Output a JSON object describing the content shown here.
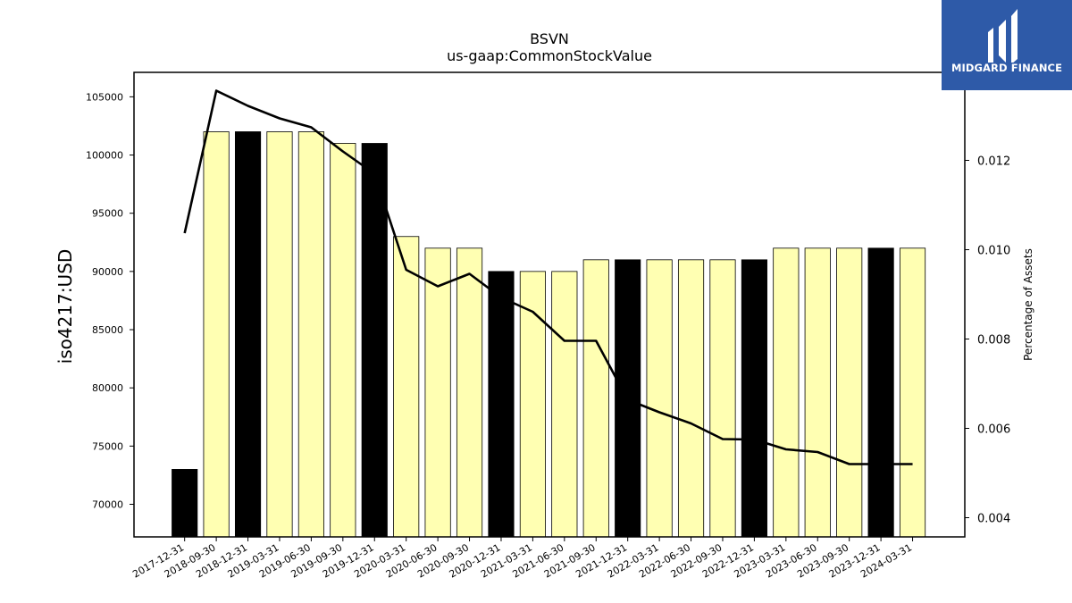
{
  "logo": {
    "text": "MIDGARD FINANCE",
    "bg_color": "#2e5aa8"
  },
  "chart_data": {
    "type": "bar",
    "title": "BSVN",
    "subtitle": "us-gaap:CommonStockValue",
    "ylabel": "iso4217:USD",
    "y2label": "Percentage of Assets",
    "ylim": [
      67200,
      107100
    ],
    "y2lim": [
      0.00357,
      0.01397
    ],
    "yticks": [
      70000,
      75000,
      80000,
      85000,
      90000,
      95000,
      100000,
      105000
    ],
    "y2ticks": [
      0.004,
      0.006,
      0.008,
      0.01,
      0.012
    ],
    "y2tick_labels": [
      "0.004",
      "0.006",
      "0.008",
      "0.010",
      "0.012"
    ],
    "categories": [
      "2017-12-31",
      "2018-09-30",
      "2018-12-31",
      "2019-03-31",
      "2019-06-30",
      "2019-09-30",
      "2019-12-31",
      "2020-03-31",
      "2020-06-30",
      "2020-09-30",
      "2020-12-31",
      "2021-03-31",
      "2021-06-30",
      "2021-09-30",
      "2021-12-31",
      "2022-03-31",
      "2022-06-30",
      "2022-09-30",
      "2022-12-31",
      "2023-03-31",
      "2023-06-30",
      "2023-09-30",
      "2023-12-31",
      "2024-03-31"
    ],
    "series": [
      {
        "type": "bar",
        "values": [
          73000,
          102000,
          102000,
          102000,
          102000,
          101000,
          101000,
          93000,
          92000,
          92000,
          90000,
          90000,
          90000,
          91000,
          91000,
          91000,
          91000,
          91000,
          91000,
          92000,
          92000,
          92000,
          92000,
          92000
        ],
        "annual_flags": [
          true,
          false,
          true,
          false,
          false,
          false,
          true,
          false,
          false,
          false,
          true,
          false,
          false,
          false,
          true,
          false,
          false,
          false,
          true,
          false,
          false,
          false,
          true,
          false
        ]
      },
      {
        "type": "line",
        "axis": "right",
        "values": [
          0.01037,
          0.01356,
          0.01322,
          0.01294,
          0.01274,
          0.0122,
          0.0117,
          0.00955,
          0.00918,
          0.00946,
          0.00893,
          0.00861,
          0.00796,
          0.00796,
          0.00664,
          0.00636,
          0.00611,
          0.00576,
          0.00575,
          0.00553,
          0.00547,
          0.0052,
          0.0052,
          0.0052
        ]
      }
    ],
    "colors": {
      "annual_bar": "#000000",
      "quarter_bar": "#ffffb2",
      "line": "#000000"
    },
    "grid": false
  }
}
